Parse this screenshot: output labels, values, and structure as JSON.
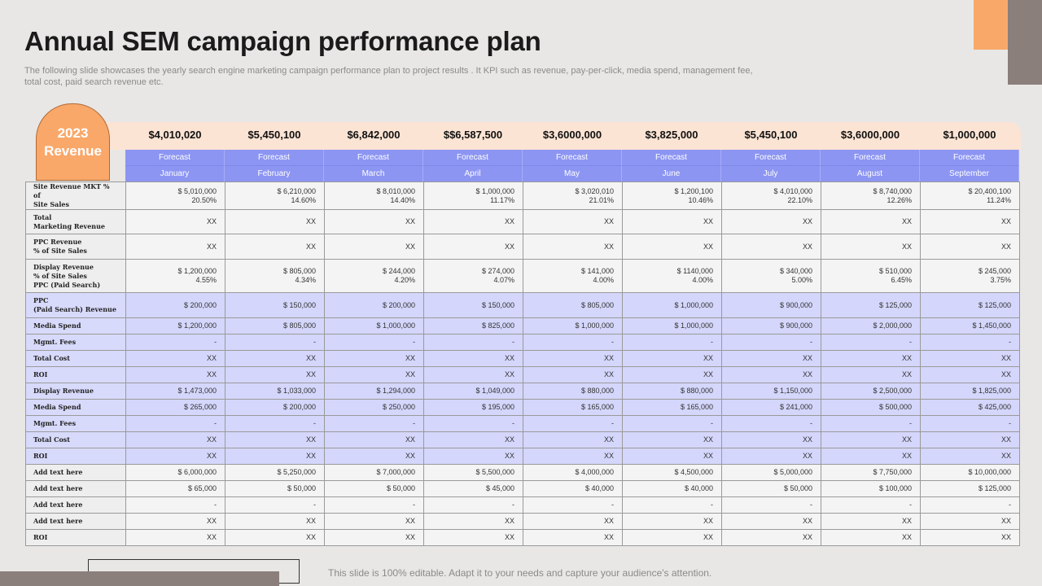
{
  "title": "Annual SEM campaign performance plan",
  "subtitle": "The following slide showcases the yearly search engine marketing campaign performance plan to project results . It KPI such as revenue, pay-per-click, media spend, management fee, total cost, paid search revenue etc.",
  "revenue_badge": {
    "year": "2023",
    "label": "Revenue"
  },
  "revenue_values": [
    "$4,010,020",
    "$5,450,100",
    "$6,842,000",
    "$$6,587,500",
    "$3,6000,000",
    "$3,825,000",
    "$5,450,100",
    "$3,6000,000",
    "$1,000,000"
  ],
  "header_row1": [
    "Forecast",
    "Forecast",
    "Forecast",
    "Forecast",
    "Forecast",
    "Forecast",
    "Forecast",
    "Forecast",
    "Forecast"
  ],
  "months": [
    "January",
    "February",
    "March",
    "April",
    "May",
    "June",
    "July",
    "August",
    "September"
  ],
  "rows": [
    {
      "style": "w",
      "label": "Site Revenue MKT % of\nSite Sales",
      "values": [
        "$ 5,010,000\n20.50%",
        "$ 6,210,000\n14.60%",
        "$ 8,010,000\n14.40%",
        "$ 1,000,000\n11.17%",
        "$ 3,020,010\n21.01%",
        "$ 1,200,100\n10.46%",
        "$ 4,010,000\n22.10%",
        "$ 8,740,000\n12.26%",
        "$ 20,400,100\n11.24%"
      ],
      "h": 31
    },
    {
      "style": "w",
      "label": "Total\nMarketing Revenue",
      "values": [
        "XX",
        "XX",
        "XX",
        "XX",
        "XX",
        "XX",
        "XX",
        "XX",
        "XX"
      ],
      "h": 30
    },
    {
      "style": "w",
      "label": "PPC Revenue\n% of Site Sales",
      "values": [
        "XX",
        "XX",
        "XX",
        "XX",
        "XX",
        "XX",
        "XX",
        "XX",
        "XX"
      ],
      "h": 31
    },
    {
      "style": "w",
      "label": "Display Revenue\n% of Site Sales\nPPC (Paid Search)",
      "values": [
        "$ 1,200,000\n4.55%",
        "$ 805,000\n4.34%",
        "$ 244,000\n4.20%",
        "$ 274,000\n4.07%",
        "$ 141,000\n4.00%",
        "$ 1140,000\n4.00%",
        "$ 340,000\n5.00%",
        "$ 510,000\n6.45%",
        "$ 245,000\n3.75%"
      ],
      "h": 41
    },
    {
      "style": "p",
      "label": "PPC\n(Paid Search) Revenue",
      "values": [
        "$ 200,000",
        "$ 150,000",
        "$ 200,000",
        "$ 150,000",
        "$ 805,000",
        "$ 1,000,000",
        "$ 900,000",
        "$ 125,000",
        "$ 125,000"
      ],
      "h": 31
    },
    {
      "style": "p",
      "label": "Media Spend",
      "values": [
        "$ 1,200,000",
        "$ 805,000",
        "$ 1,000,000",
        "$ 825,000",
        "$ 1,000,000",
        "$ 1,000,000",
        "$ 900,000",
        "$ 2,000,000",
        "$ 1,450,000"
      ],
      "h": 20
    },
    {
      "style": "p",
      "label": "Mgmt. Fees",
      "values": [
        "-",
        "-",
        "-",
        "-",
        "-",
        "-",
        "-",
        "-",
        "-"
      ],
      "h": 20
    },
    {
      "style": "p",
      "label": "Total Cost",
      "values": [
        "XX",
        "XX",
        "XX",
        "XX",
        "XX",
        "XX",
        "XX",
        "XX",
        "XX"
      ],
      "h": 20
    },
    {
      "style": "p",
      "label": "ROI",
      "values": [
        "XX",
        "XX",
        "XX",
        "XX",
        "XX",
        "XX",
        "XX",
        "XX",
        "XX"
      ],
      "h": 20
    },
    {
      "style": "p",
      "label": "Display Revenue",
      "values": [
        "$ 1,473,000",
        "$ 1,033,000",
        "$ 1,294,000",
        "$ 1,049,000",
        "$ 880,000",
        "$ 880,000",
        "$ 1,150,000",
        "$ 2,500,000",
        "$ 1,825,000"
      ],
      "h": 20
    },
    {
      "style": "p",
      "label": "Media Spend",
      "values": [
        "$ 265,000",
        "$ 200,000",
        "$ 250,000",
        "$ 195,000",
        "$ 165,000",
        "$ 165,000",
        "$ 241,000",
        "$ 500,000",
        "$ 425,000"
      ],
      "h": 20
    },
    {
      "style": "p",
      "label": "Mgmt. Fees",
      "values": [
        "-",
        "-",
        "-",
        "-",
        "-",
        "-",
        "-",
        "-",
        "-"
      ],
      "h": 20
    },
    {
      "style": "p",
      "label": "Total Cost",
      "values": [
        "XX",
        "XX",
        "XX",
        "XX",
        "XX",
        "XX",
        "XX",
        "XX",
        "XX"
      ],
      "h": 20
    },
    {
      "style": "p",
      "label": "ROI",
      "values": [
        "XX",
        "XX",
        "XX",
        "XX",
        "XX",
        "XX",
        "XX",
        "XX",
        "XX"
      ],
      "h": 20
    },
    {
      "style": "w",
      "label": "Add text here",
      "values": [
        "$ 6,000,000",
        "$ 5,250,000",
        "$ 7,000,000",
        "$ 5,500,000",
        "$ 4,000,000",
        "$ 4,500,000",
        "$ 5,000,000",
        "$ 7,750,000",
        "$ 10,000,000"
      ],
      "h": 20
    },
    {
      "style": "w",
      "label": "Add text here",
      "values": [
        "$ 65,000",
        "$ 50,000",
        "$ 50,000",
        "$ 45,000",
        "$ 40,000",
        "$ 40,000",
        "$ 50,000",
        "$ 100,000",
        "$ 125,000"
      ],
      "h": 20
    },
    {
      "style": "w",
      "label": "Add text here",
      "values": [
        "-",
        "-",
        "-",
        "-",
        "-",
        "-",
        "-",
        "-",
        "-"
      ],
      "h": 20
    },
    {
      "style": "w",
      "label": "Add text here",
      "values": [
        "XX",
        "XX",
        "XX",
        "XX",
        "XX",
        "XX",
        "XX",
        "XX",
        "XX"
      ],
      "h": 20
    },
    {
      "style": "w",
      "label": "ROI",
      "values": [
        "XX",
        "XX",
        "XX",
        "XX",
        "XX",
        "XX",
        "XX",
        "XX",
        "XX"
      ],
      "h": 20
    }
  ],
  "footer": "This slide is 100% editable. Adapt it to your needs and capture your audience's attention."
}
